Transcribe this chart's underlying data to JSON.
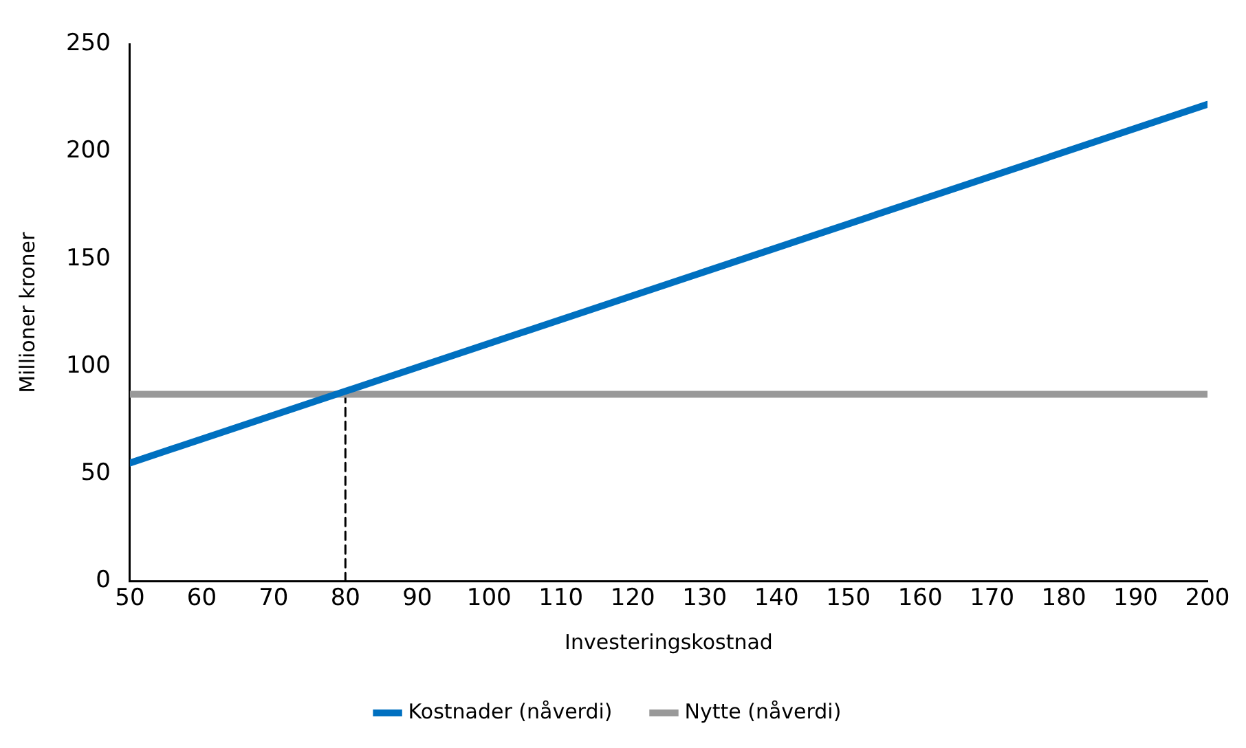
{
  "chart_data": {
    "type": "line",
    "xlabel": "Investeringskostnad",
    "ylabel": "Millioner kroner",
    "x": [
      50,
      200
    ],
    "series": [
      {
        "name": "Kostnader (nåverdi)",
        "color": "#0070c0",
        "values": [
          55,
          222
        ]
      },
      {
        "name": "Nytte (nåverdi)",
        "color": "#999999",
        "values": [
          87,
          87
        ]
      },
      {
        "color": "#000000",
        "x": [
          80,
          80
        ],
        "values": [
          0,
          87
        ],
        "line_style": "dashed"
      }
    ],
    "xlim": [
      50,
      200
    ],
    "xticks": [
      50,
      60,
      70,
      80,
      90,
      100,
      110,
      120,
      130,
      140,
      150,
      160,
      170,
      180,
      190,
      200
    ],
    "ylim": [
      0,
      250
    ],
    "yticks": [
      0,
      50,
      100,
      150,
      200,
      250
    ],
    "grid": false,
    "legend": "bottom",
    "marker": "none",
    "line_style": "solid"
  }
}
